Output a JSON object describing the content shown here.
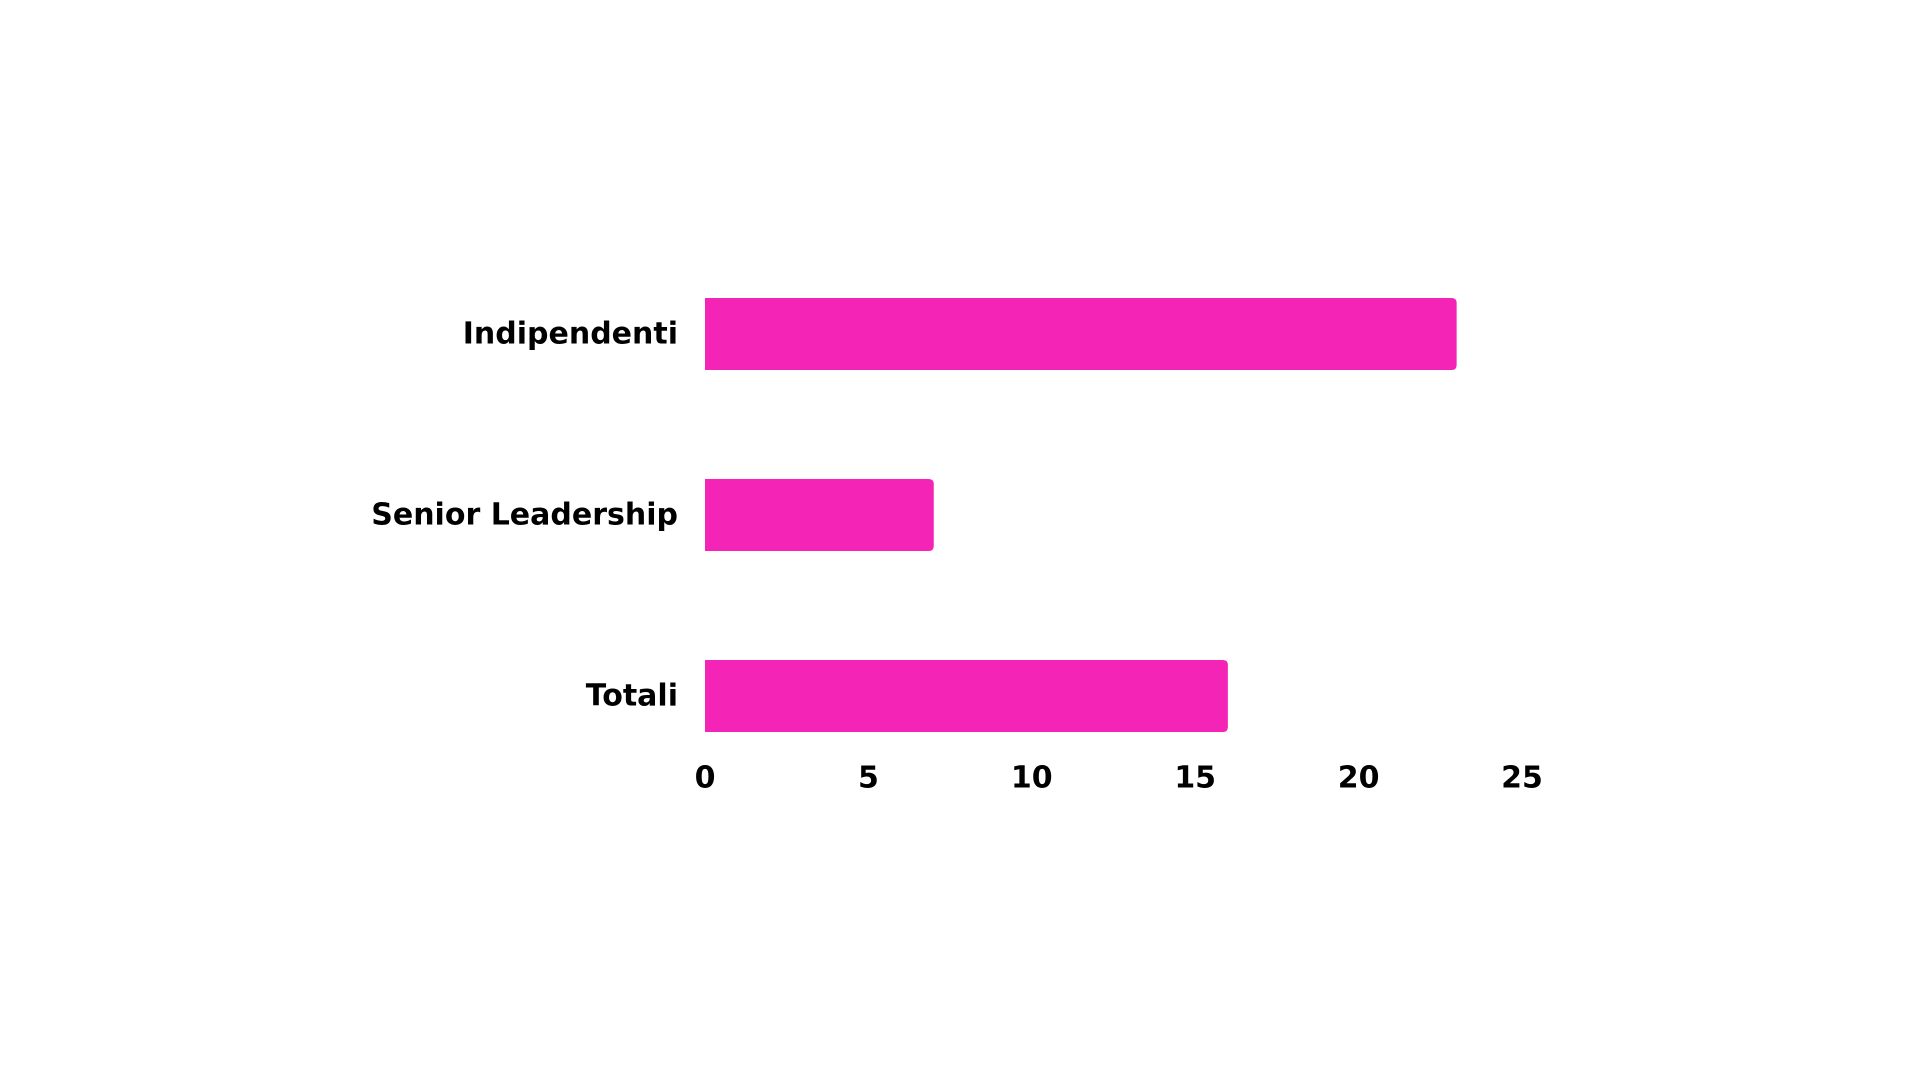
{
  "chart_data": {
    "type": "bar",
    "orientation": "horizontal",
    "categories": [
      "Indipendenti",
      "Senior Leadership",
      "Totali"
    ],
    "values": [
      23,
      7,
      16
    ],
    "xlim": [
      0,
      25
    ],
    "xticks": [
      0,
      5,
      10,
      15,
      20,
      25
    ],
    "grid": false,
    "legend": "none",
    "colors": {
      "bar": "#F425B6",
      "text": "#000000",
      "background": "#FFFFFF"
    }
  }
}
